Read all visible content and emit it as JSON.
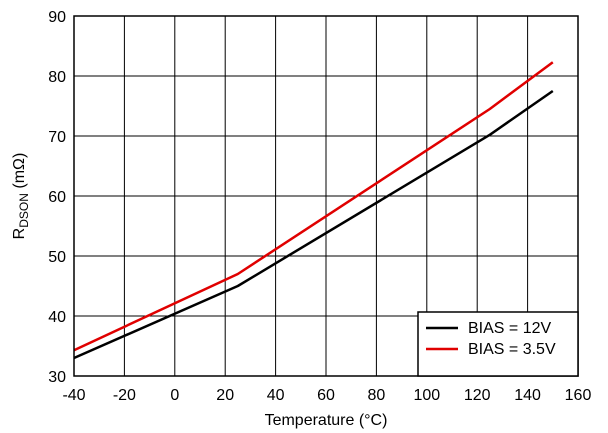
{
  "chart_data": {
    "type": "line",
    "xlabel": "Temperature (°C)",
    "ylabel": {
      "main": "R",
      "sub": "DSON",
      "unit": " (mΩ)"
    },
    "xlim": [
      -40,
      160
    ],
    "ylim": [
      30,
      90
    ],
    "xticks": [
      -40,
      -20,
      0,
      20,
      40,
      60,
      80,
      100,
      120,
      140,
      160
    ],
    "yticks": [
      30,
      40,
      50,
      60,
      70,
      80,
      90
    ],
    "grid": true,
    "legend_position": "bottom-right",
    "series": [
      {
        "name": "BIAS = 12V",
        "color": "#000000",
        "x": [
          -40,
          25,
          125,
          150
        ],
        "y": [
          33.0,
          45.0,
          70.2,
          77.5
        ]
      },
      {
        "name": "BIAS = 3.5V",
        "color": "#e00000",
        "x": [
          -40,
          25,
          125,
          150
        ],
        "y": [
          34.3,
          47.0,
          74.5,
          82.3
        ]
      }
    ]
  }
}
